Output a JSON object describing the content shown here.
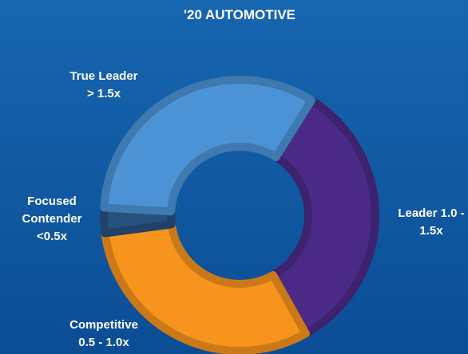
{
  "chart_data": {
    "type": "donut",
    "title": "'20 AUTOMOTIVE",
    "categories": [
      [
        "Leader 1.0 -",
        "1.5x"
      ],
      [
        "Competitive",
        "0.5 - 1.0x"
      ],
      [
        "Focused",
        "Contender",
        "<0.5x"
      ],
      [
        "True Leader",
        "> 1.5x"
      ]
    ],
    "values": [
      33,
      31,
      3,
      33
    ],
    "colors": [
      "#4a2a86",
      "#f7941d",
      "#27517d",
      "#4c93d6"
    ]
  }
}
